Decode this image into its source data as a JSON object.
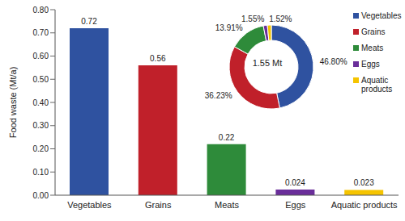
{
  "chart_data": [
    {
      "type": "bar",
      "categories": [
        "Vegetables",
        "Grains",
        "Meats",
        "Eggs",
        "Aquatic products"
      ],
      "values": [
        0.72,
        0.56,
        0.22,
        0.024,
        0.023
      ],
      "colors": [
        "#2f52a0",
        "#c0202a",
        "#2e8b3a",
        "#6a2e9a",
        "#f5c400"
      ],
      "ylabel": "Food waste (Mt/a)",
      "ylim": [
        0,
        0.8
      ],
      "yticks": [
        {
          "value": 0,
          "label": "0.00"
        },
        {
          "value": 0.1,
          "label": "0.10"
        },
        {
          "value": 0.2,
          "label": "0.20"
        },
        {
          "value": 0.3,
          "label": "0.30"
        },
        {
          "value": 0.4,
          "label": "0.40"
        },
        {
          "value": 0.5,
          "label": "0.50"
        },
        {
          "value": 0.6,
          "label": "0.60"
        },
        {
          "value": 0.7,
          "label": "0.70"
        },
        {
          "value": 0.8,
          "label": "0.80"
        }
      ],
      "data_labels": true,
      "grid": false
    },
    {
      "type": "pie",
      "categories": [
        "Vegetables",
        "Grains",
        "Meats",
        "Eggs",
        "Aquatic products"
      ],
      "values": [
        46.8,
        36.23,
        13.91,
        1.55,
        1.52
      ],
      "value_labels": [
        "46.80%",
        "36.23%",
        "13.91%",
        "1.55%",
        "1.52%"
      ],
      "colors": [
        "#2f52a0",
        "#c0202a",
        "#2e8b3a",
        "#6a2e9a",
        "#f5c400"
      ],
      "annotation": "1.55 Mt",
      "legend": "right"
    }
  ]
}
